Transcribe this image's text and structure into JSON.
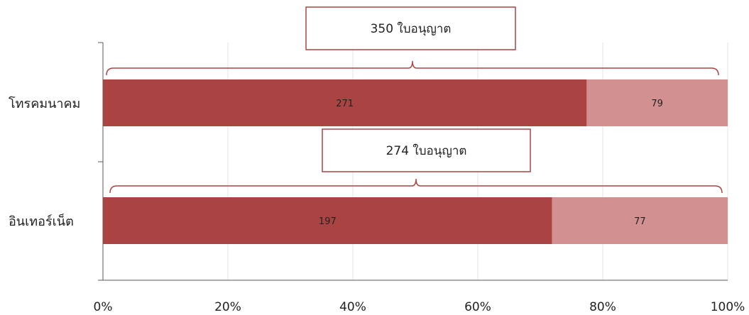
{
  "chart_data": {
    "type": "bar",
    "orientation": "horizontal",
    "stacking": "percent",
    "categories": [
      "โทรคมนาคม",
      "อินเทอร์เน็ต"
    ],
    "series": [
      {
        "values": [
          271,
          197
        ],
        "color": "#a94442"
      },
      {
        "values": [
          79,
          77
        ],
        "color": "#d29090"
      }
    ],
    "totals_labels": [
      "350 ใบอนุญาต",
      "274 ใบอนุญาต"
    ],
    "x_ticks": [
      "0%",
      "20%",
      "40%",
      "60%",
      "80%",
      "100%"
    ],
    "xlim": [
      0,
      100
    ],
    "grid": true,
    "legend": "none",
    "annotation_color": "#a94442"
  }
}
